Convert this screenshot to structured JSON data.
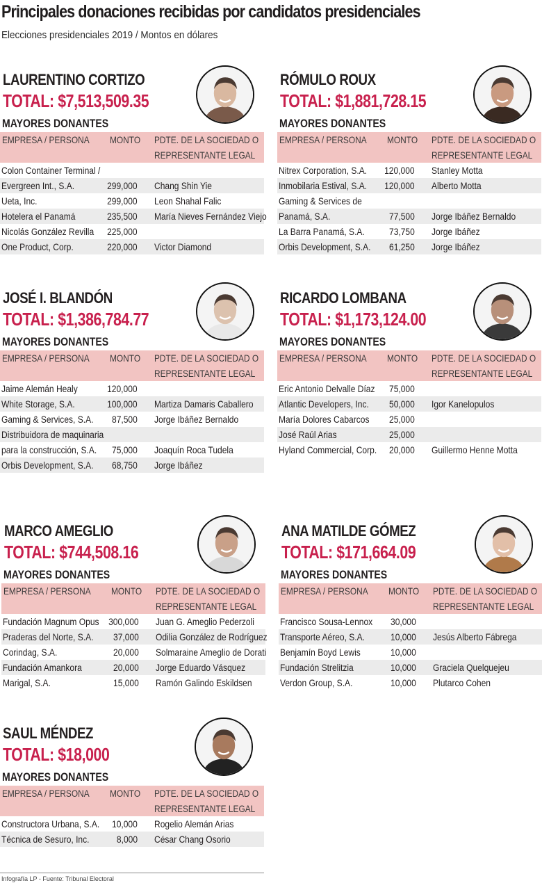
{
  "header": {
    "title": "Principales donaciones recibidas por candidatos presidenciales",
    "subtitle": "Elecciones presidenciales 2019 / Montos en dólares"
  },
  "labels": {
    "donors": "MAYORES DONANTES",
    "col_company": "EMPRESA / PERSONA",
    "col_amount": "MONTO",
    "col_rep_line1": "PDTE. DE LA SOCIEDAD O",
    "col_rep_line2": "REPRESENTANTE LEGAL"
  },
  "colors": {
    "accent_total": "#c8204d",
    "header_bg": "#f2c4c2",
    "row_shade": "#ebebeb",
    "text": "#231f20"
  },
  "candidates": [
    {
      "name": "LAURENTINO CORTIZO",
      "total": "TOTAL: $7,513,509.35",
      "photo_icon": "candidate-portrait",
      "rows": [
        {
          "company": "Colon Container Terminal /",
          "amount": "",
          "rep": ""
        },
        {
          "company": "Evergreen Int., S.A.",
          "amount": "299,000",
          "rep": "Chang Shin Yie"
        },
        {
          "company": "Ueta, Inc.",
          "amount": "299,000",
          "rep": "Leon Shahal Falic"
        },
        {
          "company": "Hotelera el Panamá",
          "amount": "235,500",
          "rep": "María Nieves Fernández Viejo"
        },
        {
          "company": "Nicolás González Revilla",
          "amount": "225,000",
          "rep": ""
        },
        {
          "company": "One Product, Corp.",
          "amount": "220,000",
          "rep": "Victor Diamond"
        }
      ]
    },
    {
      "name": "RÓMULO ROUX",
      "total": "TOTAL: $1,881,728.15",
      "photo_icon": "candidate-portrait",
      "rows": [
        {
          "company": "Nitrex Corporation, S.A.",
          "amount": "120,000",
          "rep": "Stanley Motta"
        },
        {
          "company": "Inmobilaria Estival, S.A.",
          "amount": "120,000",
          "rep": "Alberto Motta"
        },
        {
          "company": "Gaming & Services de",
          "amount": "",
          "rep": ""
        },
        {
          "company": "Panamá, S.A.",
          "amount": "77,500",
          "rep": "Jorge Ibáñez Bernaldo"
        },
        {
          "company": "La Barra Panamá, S.A.",
          "amount": "73,750",
          "rep": "Jorge Ibáñez"
        },
        {
          "company": "Orbis Development, S.A.",
          "amount": "61,250",
          "rep": "Jorge Ibáñez"
        }
      ]
    },
    {
      "name": "JOSÉ I. BLANDÓN",
      "total": "TOTAL: $1,386,784.77",
      "photo_icon": "candidate-portrait",
      "rows": [
        {
          "company": "Jaime Alemán Healy",
          "amount": "120,000",
          "rep": ""
        },
        {
          "company": "White Storage, S.A.",
          "amount": "100,000",
          "rep": "Martiza Damaris Caballero"
        },
        {
          "company": "Gaming & Services, S.A.",
          "amount": "87,500",
          "rep": "Jorge Ibáñez Bernaldo"
        },
        {
          "company": "Distribuidora de maquinaria",
          "amount": "",
          "rep": ""
        },
        {
          "company": "para la construcción, S.A.",
          "amount": "75,000",
          "rep": "Joaquín Roca Tudela"
        },
        {
          "company": "Orbis Development, S.A.",
          "amount": "68,750",
          "rep": "Jorge Ibáñez"
        }
      ]
    },
    {
      "name": "RICARDO LOMBANA",
      "total": "TOTAL: $1,173,124.00",
      "photo_icon": "candidate-portrait",
      "rows": [
        {
          "company": "Eric Antonio Delvalle Díaz",
          "amount": "75,000",
          "rep": ""
        },
        {
          "company": "Atlantic Developers, Inc.",
          "amount": "50,000",
          "rep": "Igor Kanelopulos"
        },
        {
          "company": "María Dolores Cabarcos",
          "amount": "25,000",
          "rep": ""
        },
        {
          "company": "José Raúl Arias",
          "amount": "25,000",
          "rep": ""
        },
        {
          "company": "Hyland Commercial, Corp.",
          "amount": "20,000",
          "rep": "Guillermo Henne Motta"
        }
      ]
    },
    {
      "name": "MARCO AMEGLIO",
      "total": "TOTAL: $744,508.16",
      "photo_icon": "candidate-portrait",
      "rows": [
        {
          "company": "Fundación Magnum Opus",
          "amount": "300,000",
          "rep": "Juan G. Ameglio Pederzoli"
        },
        {
          "company": "Praderas del Norte, S.A.",
          "amount": "37,000",
          "rep": "Odilia González de Rodríguez"
        },
        {
          "company": "Corindag, S.A.",
          "amount": "20,000",
          "rep": "Solmaraine Ameglio de Dorati"
        },
        {
          "company": "Fundación Amankora",
          "amount": "20,000",
          "rep": "Jorge Eduardo Vásquez"
        },
        {
          "company": "Marigal, S.A.",
          "amount": "15,000",
          "rep": "Ramón Galindo Eskildsen"
        }
      ]
    },
    {
      "name": "ANA MATILDE GÓMEZ",
      "total": "TOTAL: $171,664.09",
      "photo_icon": "candidate-portrait",
      "rows": [
        {
          "company": "Francisco Sousa-Lennox",
          "amount": "30,000",
          "rep": ""
        },
        {
          "company": "Transporte Aéreo, S.A.",
          "amount": "10,000",
          "rep": "Jesús Alberto Fábrega"
        },
        {
          "company": "Benjamín Boyd Lewis",
          "amount": "10,000",
          "rep": ""
        },
        {
          "company": "Fundación Strelitzia",
          "amount": "10,000",
          "rep": "Graciela Quelquejeu"
        },
        {
          "company": "Verdon Group, S.A.",
          "amount": "10,000",
          "rep": "Plutarco Cohen"
        }
      ]
    },
    {
      "name": "SAUL MÉNDEZ",
      "total": "TOTAL: $18,000",
      "photo_icon": "candidate-portrait",
      "rows": [
        {
          "company": "Constructora Urbana, S.A.",
          "amount": "10,000",
          "rep": "Rogelio Alemán Arias"
        },
        {
          "company": "Técnica de Sesuro, Inc.",
          "amount": "8,000",
          "rep": "César Chang Osorio"
        }
      ]
    }
  ],
  "footer": {
    "credit": "Infografía LP - Fuente: Tribunal Electoral"
  }
}
